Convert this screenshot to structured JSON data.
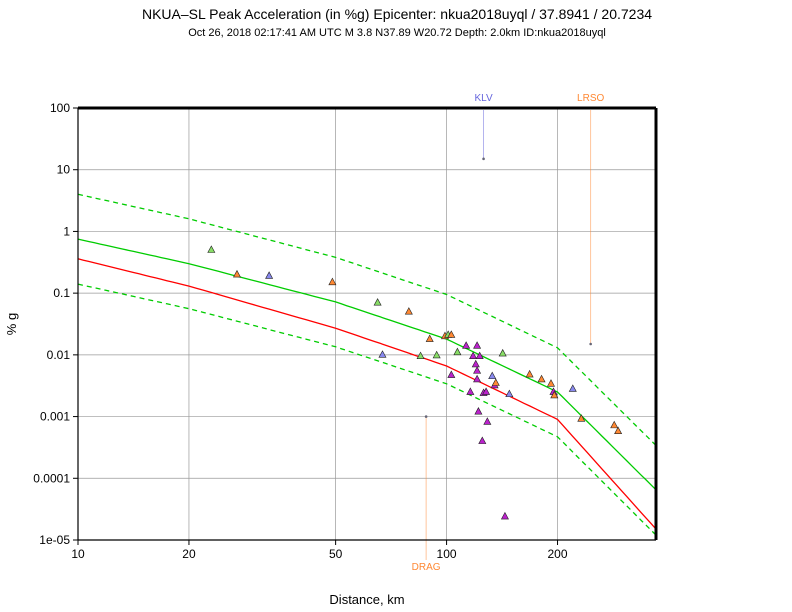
{
  "chart_data": {
    "type": "scatter",
    "title": "NKUA–SL Peak Acceleration (in %g) Epicenter: nkua2018uyql / 37.8941 / 20.7234",
    "subtitle": "Oct 26, 2018 02:17:41 AM UTC    M 3.8    N37.89 W20.72    Depth: 2.0km    ID:nkua2018uyql",
    "xlabel": "Distance, km",
    "ylabel": "% g",
    "xscale": "log",
    "yscale": "log",
    "xlim": [
      10,
      370
    ],
    "ylim": [
      1e-05,
      100
    ],
    "grid": true,
    "xticks": [
      {
        "value": 10,
        "label": "10"
      },
      {
        "value": 20,
        "label": "20"
      },
      {
        "value": 50,
        "label": "50"
      },
      {
        "value": 100,
        "label": "100"
      },
      {
        "value": 200,
        "label": "200"
      }
    ],
    "yticks": [
      {
        "value": 1e-05,
        "label": "1e-05"
      },
      {
        "value": 0.0001,
        "label": "0.0001"
      },
      {
        "value": 0.001,
        "label": "0.001"
      },
      {
        "value": 0.01,
        "label": "0.01"
      },
      {
        "value": 0.1,
        "label": "0.1"
      },
      {
        "value": 1,
        "label": "1"
      },
      {
        "value": 10,
        "label": "10"
      },
      {
        "value": 100,
        "label": "100"
      }
    ],
    "colors": {
      "gmpe": "#00cc00",
      "reference": "#ff0000",
      "green": "#88dd66",
      "orange": "#ff8833",
      "blue": "#8888ee",
      "purple": "#bb22cc",
      "flag_orange": "#ff8833",
      "flag_blue": "#6666dd"
    },
    "curves": [
      {
        "role": "median",
        "color": "#00cc00",
        "dash": false,
        "points": [
          [
            10,
            0.75
          ],
          [
            20,
            0.3
          ],
          [
            50,
            0.072
          ],
          [
            100,
            0.018
          ],
          [
            200,
            0.0025
          ],
          [
            370,
            6.5e-05
          ]
        ]
      },
      {
        "role": "upper",
        "color": "#00cc00",
        "dash": true,
        "points": [
          [
            10,
            4.0
          ],
          [
            20,
            1.6
          ],
          [
            50,
            0.38
          ],
          [
            100,
            0.095
          ],
          [
            200,
            0.013
          ],
          [
            370,
            0.00034
          ]
        ]
      },
      {
        "role": "lower",
        "color": "#00cc00",
        "dash": true,
        "points": [
          [
            10,
            0.14
          ],
          [
            20,
            0.056
          ],
          [
            50,
            0.0135
          ],
          [
            100,
            0.0034
          ],
          [
            200,
            0.00047
          ],
          [
            370,
            1.2e-05
          ]
        ]
      },
      {
        "role": "reference",
        "color": "#ff0000",
        "dash": false,
        "points": [
          [
            10,
            0.36
          ],
          [
            20,
            0.13
          ],
          [
            50,
            0.027
          ],
          [
            100,
            0.0066
          ],
          [
            200,
            0.0009
          ],
          [
            370,
            1.5e-05
          ]
        ]
      }
    ],
    "stations": [
      {
        "x": 23,
        "y": 0.5,
        "color": "green"
      },
      {
        "x": 27,
        "y": 0.2,
        "color": "orange"
      },
      {
        "x": 33,
        "y": 0.19,
        "color": "blue"
      },
      {
        "x": 49,
        "y": 0.15,
        "color": "orange"
      },
      {
        "x": 65,
        "y": 0.07,
        "color": "green"
      },
      {
        "x": 67,
        "y": 0.01,
        "color": "blue"
      },
      {
        "x": 79,
        "y": 0.05,
        "color": "orange"
      },
      {
        "x": 85,
        "y": 0.0095,
        "color": "green"
      },
      {
        "x": 90,
        "y": 0.018,
        "color": "orange"
      },
      {
        "x": 94,
        "y": 0.0098,
        "color": "green"
      },
      {
        "x": 99,
        "y": 0.02,
        "color": "orange"
      },
      {
        "x": 101,
        "y": 0.021,
        "color": "green"
      },
      {
        "x": 103,
        "y": 0.021,
        "color": "orange"
      },
      {
        "x": 103,
        "y": 0.0047,
        "color": "purple"
      },
      {
        "x": 107,
        "y": 0.011,
        "color": "green"
      },
      {
        "x": 113,
        "y": 0.014,
        "color": "purple"
      },
      {
        "x": 116,
        "y": 0.0025,
        "color": "purple"
      },
      {
        "x": 118,
        "y": 0.0095,
        "color": "purple"
      },
      {
        "x": 120,
        "y": 0.007,
        "color": "purple"
      },
      {
        "x": 121,
        "y": 0.014,
        "color": "purple"
      },
      {
        "x": 121,
        "y": 0.0055,
        "color": "purple"
      },
      {
        "x": 121,
        "y": 0.004,
        "color": "purple"
      },
      {
        "x": 122,
        "y": 0.0012,
        "color": "purple"
      },
      {
        "x": 123,
        "y": 0.0095,
        "color": "purple"
      },
      {
        "x": 125,
        "y": 0.0004,
        "color": "purple"
      },
      {
        "x": 126,
        "y": 0.0024,
        "color": "purple"
      },
      {
        "x": 128,
        "y": 0.0025,
        "color": "purple"
      },
      {
        "x": 129,
        "y": 0.00082,
        "color": "purple"
      },
      {
        "x": 133,
        "y": 0.0045,
        "color": "blue"
      },
      {
        "x": 135,
        "y": 0.0032,
        "color": "purple"
      },
      {
        "x": 136,
        "y": 0.0035,
        "color": "orange"
      },
      {
        "x": 142,
        "y": 0.0105,
        "color": "green"
      },
      {
        "x": 144,
        "y": 2.4e-05,
        "color": "purple"
      },
      {
        "x": 148,
        "y": 0.0023,
        "color": "blue"
      },
      {
        "x": 168,
        "y": 0.0048,
        "color": "orange"
      },
      {
        "x": 181,
        "y": 0.004,
        "color": "orange"
      },
      {
        "x": 192,
        "y": 0.0034,
        "color": "orange"
      },
      {
        "x": 195,
        "y": 0.0025,
        "color": "purple"
      },
      {
        "x": 196,
        "y": 0.0022,
        "color": "orange"
      },
      {
        "x": 220,
        "y": 0.0028,
        "color": "blue"
      },
      {
        "x": 232,
        "y": 0.00092,
        "color": "orange"
      },
      {
        "x": 285,
        "y": 0.00072,
        "color": "orange"
      },
      {
        "x": 292,
        "y": 0.00058,
        "color": "orange"
      }
    ],
    "flagged": [
      {
        "label": "KLV",
        "x": 126,
        "y": 15,
        "color": "flag_blue",
        "label_at": "top"
      },
      {
        "label": "LRSO",
        "x": 246,
        "y": 0.015,
        "color": "flag_orange",
        "label_at": "top"
      },
      {
        "label": "DRAG",
        "x": 88,
        "y": 0.001,
        "color": "flag_orange",
        "label_at": "bottom"
      }
    ]
  }
}
